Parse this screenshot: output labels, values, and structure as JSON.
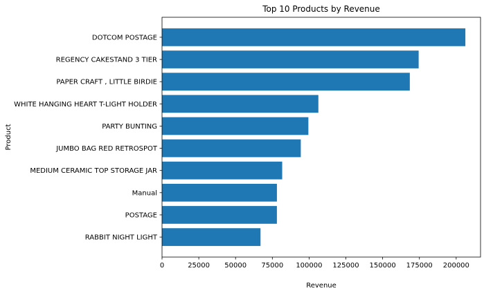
{
  "chart_data": {
    "type": "bar",
    "orientation": "horizontal",
    "title": "Top 10 Products by Revenue",
    "xlabel": "Revenue",
    "ylabel": "Product",
    "categories": [
      "DOTCOM POSTAGE",
      "REGENCY CAKESTAND 3 TIER",
      "PAPER CRAFT , LITTLE BIRDIE",
      "WHITE HANGING HEART T-LIGHT HOLDER",
      "PARTY BUNTING",
      "JUMBO BAG RED RETROSPOT",
      "MEDIUM CERAMIC TOP STORAGE JAR",
      "Manual",
      "POSTAGE",
      "RABBIT NIGHT LIGHT"
    ],
    "values": [
      206245,
      174484,
      168470,
      106292,
      99504,
      94340,
      81701,
      78112,
      78101,
      66964
    ],
    "xlim": [
      0,
      216557
    ],
    "xticks": [
      0,
      25000,
      50000,
      75000,
      100000,
      125000,
      150000,
      175000,
      200000
    ],
    "xtick_labels": [
      "0",
      "25000",
      "50000",
      "75000",
      "100000",
      "125000",
      "150000",
      "175000",
      "200000"
    ],
    "grid": false,
    "bar_color": "#1f77b4"
  }
}
